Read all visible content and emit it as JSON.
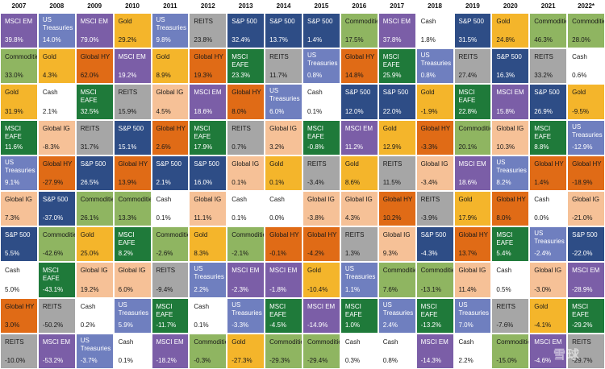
{
  "chart_data": {
    "type": "table",
    "title": "",
    "years": [
      "2007",
      "2008",
      "2009",
      "2010",
      "2011",
      "2012",
      "2013",
      "2014",
      "2015",
      "2016",
      "2017",
      "2018",
      "2019",
      "2020",
      "2021",
      "2022*"
    ],
    "asset_classes": {
      "MSCI EM": {
        "fill": "#7b5ea7",
        "text": "#ffffff"
      },
      "Commodities": {
        "fill": "#8fb561",
        "text": "#1a1a1a"
      },
      "Gold": {
        "fill": "#f4b52b",
        "text": "#1a1a1a"
      },
      "MSCI EAFE": {
        "fill": "#1f7a3a",
        "text": "#ffffff"
      },
      "US Treasuries": {
        "fill": "#6f7fbf",
        "text": "#ffffff"
      },
      "Global IG": {
        "fill": "#f6c197",
        "text": "#1a1a1a"
      },
      "S&P 500": {
        "fill": "#2e4d86",
        "text": "#ffffff"
      },
      "Cash": {
        "fill": "#ffffff",
        "text": "#1a1a1a"
      },
      "Global HY": {
        "fill": "#e06b16",
        "text": "#1a1a1a"
      },
      "REITS": {
        "fill": "#a6a6a6",
        "text": "#1a1a1a"
      }
    },
    "columns": [
      [
        [
          "MSCI EM",
          "39.8%"
        ],
        [
          "Commodities",
          "33.0%"
        ],
        [
          "Gold",
          "31.9%"
        ],
        [
          "MSCI EAFE",
          "11.6%"
        ],
        [
          "US Treasuries",
          "9.1%"
        ],
        [
          "Global IG",
          "7.3%"
        ],
        [
          "S&P 500",
          "5.5%"
        ],
        [
          "Cash",
          "5.0%"
        ],
        [
          "Global HY",
          "3.0%"
        ],
        [
          "REITS",
          "-10.0%"
        ]
      ],
      [
        [
          "US Treasuries",
          "14.0%"
        ],
        [
          "Gold",
          "4.3%"
        ],
        [
          "Cash",
          "2.1%"
        ],
        [
          "Global IG",
          "-8.3%"
        ],
        [
          "Global HY",
          "-27.9%"
        ],
        [
          "S&P 500",
          "-37.0%"
        ],
        [
          "Commodities",
          "-42.6%"
        ],
        [
          "MSCI EAFE",
          "-43.1%"
        ],
        [
          "REITS",
          "-50.2%"
        ],
        [
          "MSCI EM",
          "-53.2%"
        ]
      ],
      [
        [
          "MSCI EM",
          "79.0%"
        ],
        [
          "Global HY",
          "62.0%"
        ],
        [
          "MSCI EAFE",
          "32.5%"
        ],
        [
          "REITS",
          "31.7%"
        ],
        [
          "S&P 500",
          "26.5%"
        ],
        [
          "Commodities",
          "26.1%"
        ],
        [
          "Gold",
          "25.0%"
        ],
        [
          "Global IG",
          "19.2%"
        ],
        [
          "Cash",
          "0.2%"
        ],
        [
          "US Treasuries",
          "-3.7%"
        ]
      ],
      [
        [
          "Gold",
          "29.2%"
        ],
        [
          "MSCI EM",
          "19.2%"
        ],
        [
          "REITS",
          "15.9%"
        ],
        [
          "S&P 500",
          "15.1%"
        ],
        [
          "Global HY",
          "13.9%"
        ],
        [
          "Commodities",
          "13.3%"
        ],
        [
          "MSCI EAFE",
          "8.2%"
        ],
        [
          "Global IG",
          "6.0%"
        ],
        [
          "US Treasuries",
          "5.9%"
        ],
        [
          "Cash",
          "0.1%"
        ]
      ],
      [
        [
          "US Treasuries",
          "9.8%"
        ],
        [
          "Gold",
          "8.9%"
        ],
        [
          "Global IG",
          "4.5%"
        ],
        [
          "Global HY",
          "2.6%"
        ],
        [
          "S&P 500",
          "2.1%"
        ],
        [
          "Cash",
          "0.1%"
        ],
        [
          "Commodities",
          "-2.6%"
        ],
        [
          "REITS",
          "-9.4%"
        ],
        [
          "MSCI EAFE",
          "-11.7%"
        ],
        [
          "MSCI EM",
          "-18.2%"
        ]
      ],
      [
        [
          "REITS",
          "23.8%"
        ],
        [
          "Global HY",
          "19.3%"
        ],
        [
          "MSCI EM",
          "18.6%"
        ],
        [
          "MSCI EAFE",
          "17.9%"
        ],
        [
          "S&P 500",
          "16.0%"
        ],
        [
          "Global IG",
          "11.1%"
        ],
        [
          "Gold",
          "8.3%"
        ],
        [
          "US Treasuries",
          "2.2%"
        ],
        [
          "Cash",
          "0.1%"
        ],
        [
          "Commodities",
          "-0.3%"
        ]
      ],
      [
        [
          "S&P 500",
          "32.4%"
        ],
        [
          "MSCI EAFE",
          "23.3%"
        ],
        [
          "Global HY",
          "8.0%"
        ],
        [
          "REITS",
          "0.7%"
        ],
        [
          "Global IG",
          "0.1%"
        ],
        [
          "Cash",
          "0.1%"
        ],
        [
          "Commodities",
          "-2.1%"
        ],
        [
          "MSCI EM",
          "-2.3%"
        ],
        [
          "US Treasuries",
          "-3.3%"
        ],
        [
          "Gold",
          "-27.3%"
        ]
      ],
      [
        [
          "S&P 500",
          "13.7%"
        ],
        [
          "REITS",
          "11.7%"
        ],
        [
          "US Treasuries",
          "6.0%"
        ],
        [
          "Global IG",
          "3.2%"
        ],
        [
          "Gold",
          "0.1%"
        ],
        [
          "Cash",
          "0.0%"
        ],
        [
          "Global HY",
          "-0.1%"
        ],
        [
          "MSCI EM",
          "-1.8%"
        ],
        [
          "MSCI EAFE",
          "-4.5%"
        ],
        [
          "Commodities",
          "-29.3%"
        ]
      ],
      [
        [
          "S&P 500",
          "1.4%"
        ],
        [
          "US Treasuries",
          "0.8%"
        ],
        [
          "Cash",
          "0.1%"
        ],
        [
          "MSCI EAFE",
          "-0.8%"
        ],
        [
          "REITS",
          "-3.4%"
        ],
        [
          "Global IG",
          "-3.8%"
        ],
        [
          "Global HY",
          "-4.2%"
        ],
        [
          "Gold",
          "-10.4%"
        ],
        [
          "MSCI EM",
          "-14.9%"
        ],
        [
          "Commodities",
          "-29.4%"
        ]
      ],
      [
        [
          "Commodities",
          "17.5%"
        ],
        [
          "Global HY",
          "14.8%"
        ],
        [
          "S&P 500",
          "12.0%"
        ],
        [
          "MSCI EM",
          "11.2%"
        ],
        [
          "Gold",
          "8.6%"
        ],
        [
          "Global IG",
          "4.3%"
        ],
        [
          "REITS",
          "1.3%"
        ],
        [
          "US Treasuries",
          "1.1%"
        ],
        [
          "MSCI EAFE",
          "1.0%"
        ],
        [
          "Cash",
          "0.3%"
        ]
      ],
      [
        [
          "MSCI EM",
          "37.8%"
        ],
        [
          "MSCI EAFE",
          "25.9%"
        ],
        [
          "S&P 500",
          "22.0%"
        ],
        [
          "Gold",
          "12.9%"
        ],
        [
          "REITS",
          "11.5%"
        ],
        [
          "Global HY",
          "10.2%"
        ],
        [
          "Global IG",
          "9.3%"
        ],
        [
          "Commodities",
          "7.6%"
        ],
        [
          "US Treasuries",
          "2.4%"
        ],
        [
          "Cash",
          "0.8%"
        ]
      ],
      [
        [
          "Cash",
          "1.8%"
        ],
        [
          "US Treasuries",
          "0.8%"
        ],
        [
          "Gold",
          "-1.9%"
        ],
        [
          "Global HY",
          "-3.3%"
        ],
        [
          "Global IG",
          "-3.4%"
        ],
        [
          "REITS",
          "-3.9%"
        ],
        [
          "S&P 500",
          "-4.3%"
        ],
        [
          "Commodities",
          "-13.1%"
        ],
        [
          "MSCI EAFE",
          "-13.2%"
        ],
        [
          "MSCI EM",
          "-14.3%"
        ]
      ],
      [
        [
          "S&P 500",
          "31.5%"
        ],
        [
          "REITS",
          "27.4%"
        ],
        [
          "MSCI EAFE",
          "22.8%"
        ],
        [
          "Commodities",
          "20.1%"
        ],
        [
          "MSCI EM",
          "18.6%"
        ],
        [
          "Gold",
          "17.9%"
        ],
        [
          "Global HY",
          "13.7%"
        ],
        [
          "Global IG",
          "11.4%"
        ],
        [
          "US Treasuries",
          "7.0%"
        ],
        [
          "Cash",
          "2.2%"
        ]
      ],
      [
        [
          "Gold",
          "24.8%"
        ],
        [
          "S&P 500",
          "16.3%"
        ],
        [
          "MSCI EM",
          "15.8%"
        ],
        [
          "Global IG",
          "10.3%"
        ],
        [
          "US Treasuries",
          "8.2%"
        ],
        [
          "Global HY",
          "8.0%"
        ],
        [
          "MSCI EAFE",
          "5.4%"
        ],
        [
          "Cash",
          "0.5%"
        ],
        [
          "REITS",
          "-7.6%"
        ],
        [
          "Commodities",
          "-15.0%"
        ]
      ],
      [
        [
          "Commodities",
          "46.3%"
        ],
        [
          "REITS",
          "33.2%"
        ],
        [
          "S&P 500",
          "26.9%"
        ],
        [
          "MSCI EAFE",
          "8.8%"
        ],
        [
          "Global HY",
          "1.4%"
        ],
        [
          "Cash",
          "0.0%"
        ],
        [
          "US Treasuries",
          "-2.4%"
        ],
        [
          "Global IG",
          "-3.0%"
        ],
        [
          "Gold",
          "-4.1%"
        ],
        [
          "MSCI EM",
          "-4.6%"
        ]
      ],
      [
        [
          "Commodities",
          "28.0%"
        ],
        [
          "Cash",
          "0.6%"
        ],
        [
          "Gold",
          "-9.5%"
        ],
        [
          "US Treasuries",
          "-12.9%"
        ],
        [
          "Global HY",
          "-18.9%"
        ],
        [
          "Global IG",
          "-21.0%"
        ],
        [
          "S&P 500",
          "-22.0%"
        ],
        [
          "MSCI EM",
          "-28.9%"
        ],
        [
          "MSCI EAFE",
          "-29.2%"
        ],
        [
          "REITS",
          "-29.7%"
        ]
      ]
    ]
  },
  "watermark": "雪球"
}
